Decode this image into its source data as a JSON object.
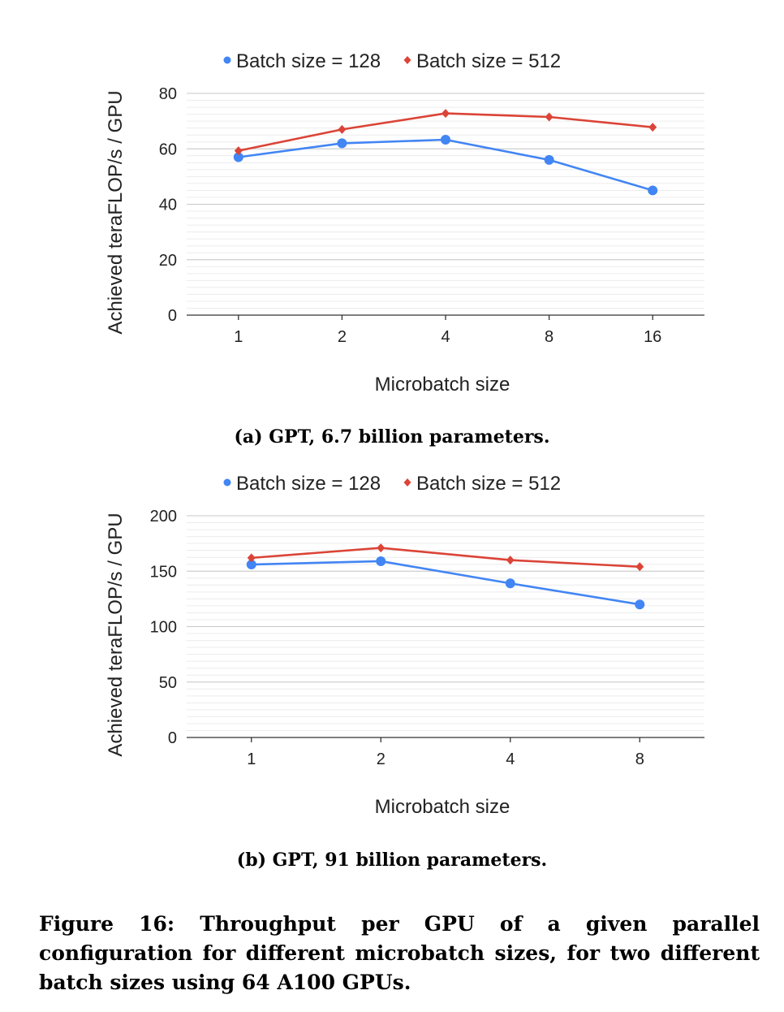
{
  "chart_data": [
    {
      "type": "line",
      "title": "",
      "xlabel": "Microbatch size",
      "ylabel": "Achieved teraFLOP/s / GPU",
      "categories": [
        "1",
        "2",
        "4",
        "8",
        "16"
      ],
      "ylim": [
        0,
        80
      ],
      "yticks": [
        0,
        20,
        40,
        60,
        80
      ],
      "minor_grid_step": 2.5,
      "series": [
        {
          "name": "Batch size = 128",
          "color": "#4285f4",
          "marker": "circle",
          "values": [
            57,
            62,
            63.3,
            56,
            45
          ]
        },
        {
          "name": "Batch size = 512",
          "color": "#db4437",
          "marker": "diamond",
          "values": [
            59.3,
            67,
            72.8,
            71.5,
            67.8
          ]
        }
      ],
      "caption": "(a) GPT, 6.7 billion parameters."
    },
    {
      "type": "line",
      "title": "",
      "xlabel": "Microbatch size",
      "ylabel": "Achieved teraFLOP/s / GPU",
      "categories": [
        "1",
        "2",
        "4",
        "8"
      ],
      "ylim": [
        0,
        200
      ],
      "yticks": [
        0,
        50,
        100,
        150,
        200
      ],
      "minor_grid_step": 6.25,
      "series": [
        {
          "name": "Batch size = 128",
          "color": "#4285f4",
          "marker": "circle",
          "values": [
            156,
            159,
            139,
            120
          ]
        },
        {
          "name": "Batch size = 512",
          "color": "#db4437",
          "marker": "diamond",
          "values": [
            162,
            171,
            160,
            154
          ]
        }
      ],
      "caption": "(b) GPT, 91 billion parameters."
    }
  ],
  "figure_caption": "Figure 16: Throughput per GPU of a given parallel configuration for different microbatch sizes, for two different batch sizes using 64 A100 GPUs."
}
